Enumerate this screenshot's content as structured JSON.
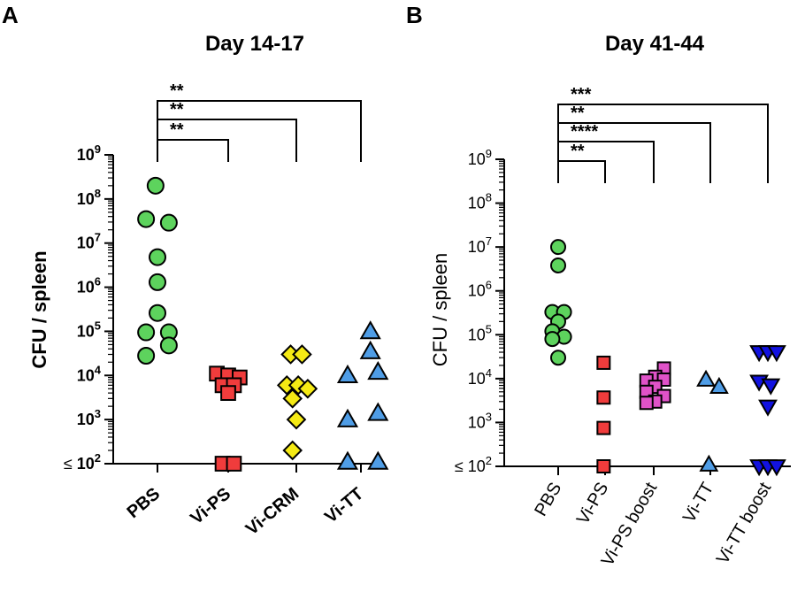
{
  "chart_data": [
    {
      "type": "scatter",
      "panel_letter": "A",
      "title": "Day 14-17",
      "xlabel": "",
      "ylabel": "CFU / spleen",
      "ylabel_bold": true,
      "tick_labels_bold": true,
      "yscale": "log",
      "ylim": [
        100,
        1000000000
      ],
      "yticks": [
        {
          "power": "9",
          "prefix": ""
        },
        {
          "power": "8",
          "prefix": ""
        },
        {
          "power": "7",
          "prefix": ""
        },
        {
          "power": "6",
          "prefix": ""
        },
        {
          "power": "5",
          "prefix": ""
        },
        {
          "power": "4",
          "prefix": ""
        },
        {
          "power": "3",
          "prefix": ""
        },
        {
          "power": "2",
          "prefix": "≤"
        }
      ],
      "tick_base": "10",
      "categories": [
        "PBS",
        "Vi-PS",
        "Vi-CRM",
        "Vi-TT"
      ],
      "series": [
        {
          "name": "PBS",
          "marker": "circle",
          "color": "#5dd35d",
          "points": [
            [
              -0.05,
              200000000
            ],
            [
              -0.3,
              35000000
            ],
            [
              0.3,
              29000000
            ],
            [
              0.0,
              4800000
            ],
            [
              0.0,
              1300000
            ],
            [
              0.0,
              260000
            ],
            [
              -0.3,
              95000
            ],
            [
              0.3,
              95000
            ],
            [
              0.3,
              48000
            ],
            [
              -0.3,
              28000
            ]
          ]
        },
        {
          "name": "Vi-PS",
          "marker": "square",
          "color": "#f03c3c",
          "points": [
            [
              -0.3,
              11000
            ],
            [
              0.0,
              10000
            ],
            [
              0.3,
              9000
            ],
            [
              -0.15,
              6000
            ],
            [
              0.15,
              6000
            ],
            [
              0.0,
              4000
            ],
            [
              -0.15,
              100
            ],
            [
              0.15,
              100
            ]
          ]
        },
        {
          "name": "Vi-CRM",
          "marker": "diamond",
          "color": "#f5ea14",
          "points": [
            [
              -0.15,
              30000
            ],
            [
              0.15,
              30000
            ],
            [
              -0.25,
              6000
            ],
            [
              0.05,
              6000
            ],
            [
              0.3,
              5000
            ],
            [
              -0.1,
              3000
            ],
            [
              0.0,
              1000
            ],
            [
              -0.1,
              200
            ]
          ]
        },
        {
          "name": "Vi-TT",
          "marker": "triangle-up",
          "color": "#4f9de6",
          "points": [
            [
              0.25,
              100000
            ],
            [
              0.25,
              35000
            ],
            [
              -0.35,
              10000
            ],
            [
              0.45,
              12000
            ],
            [
              -0.35,
              1000
            ],
            [
              0.45,
              1400
            ],
            [
              -0.35,
              110
            ],
            [
              0.45,
              110
            ]
          ]
        }
      ],
      "significance": [
        {
          "from": "PBS",
          "to": "Vi-PS",
          "label": "**"
        },
        {
          "from": "PBS",
          "to": "Vi-CRM",
          "label": "**"
        },
        {
          "from": "PBS",
          "to": "Vi-TT",
          "label": "**"
        }
      ]
    },
    {
      "type": "scatter",
      "panel_letter": "B",
      "title": "Day 41-44",
      "xlabel": "",
      "ylabel": "CFU / spleen",
      "ylabel_bold": false,
      "tick_labels_bold": false,
      "yscale": "log",
      "ylim": [
        100,
        1000000000
      ],
      "yticks": [
        {
          "power": "9",
          "prefix": ""
        },
        {
          "power": "8",
          "prefix": ""
        },
        {
          "power": "7",
          "prefix": ""
        },
        {
          "power": "6",
          "prefix": ""
        },
        {
          "power": "5",
          "prefix": ""
        },
        {
          "power": "4",
          "prefix": ""
        },
        {
          "power": "3",
          "prefix": ""
        },
        {
          "power": "2",
          "prefix": "≤"
        }
      ],
      "tick_base": "10",
      "categories": [
        "PBS",
        "Vi-PS",
        "Vi-PS boost",
        "Vi-TT",
        "Vi-TT boost"
      ],
      "series": [
        {
          "name": "PBS",
          "marker": "circle",
          "color": "#5dd35d",
          "points": [
            [
              0.0,
              10000000
            ],
            [
              0.0,
              3800000
            ],
            [
              -0.2,
              330000
            ],
            [
              0.2,
              330000
            ],
            [
              0.0,
              200000
            ],
            [
              -0.2,
              120000
            ],
            [
              0.2,
              90000
            ],
            [
              -0.2,
              80000
            ],
            [
              0.0,
              30000
            ]
          ]
        },
        {
          "name": "Vi-PS",
          "marker": "square",
          "color": "#f03c3c",
          "points": [
            [
              -0.05,
              23000
            ],
            [
              -0.05,
              3700
            ],
            [
              -0.05,
              750
            ],
            [
              -0.05,
              100
            ]
          ]
        },
        {
          "name": "Vi-PS boost",
          "marker": "square",
          "color": "#e052c8",
          "points": [
            [
              0.35,
              17000
            ],
            [
              0.05,
              11000
            ],
            [
              0.35,
              9500
            ],
            [
              -0.25,
              9000
            ],
            [
              0.05,
              6500
            ],
            [
              -0.25,
              5000
            ],
            [
              0.35,
              4000
            ],
            [
              0.05,
              3000
            ],
            [
              -0.25,
              2800
            ]
          ]
        },
        {
          "name": "Vi-TT",
          "marker": "triangle-up",
          "color": "#4f9de6",
          "points": [
            [
              -0.15,
              9500
            ],
            [
              0.3,
              6500
            ],
            [
              -0.05,
              110
            ]
          ]
        },
        {
          "name": "Vi-TT boost",
          "marker": "triangle-down",
          "color": "#1212e0",
          "points": [
            [
              -0.3,
              40000
            ],
            [
              0.0,
              40000
            ],
            [
              0.3,
              40000
            ],
            [
              -0.3,
              8500
            ],
            [
              0.1,
              7000
            ],
            [
              0.0,
              2300
            ],
            [
              -0.3,
              100
            ],
            [
              0.0,
              100
            ],
            [
              0.3,
              100
            ]
          ]
        }
      ],
      "significance": [
        {
          "from": "PBS",
          "to": "Vi-PS",
          "label": "**"
        },
        {
          "from": "PBS",
          "to": "Vi-PS boost",
          "label": "****"
        },
        {
          "from": "PBS",
          "to": "Vi-TT",
          "label": "**"
        },
        {
          "from": "PBS",
          "to": "Vi-TT boost",
          "label": "***"
        }
      ]
    }
  ]
}
